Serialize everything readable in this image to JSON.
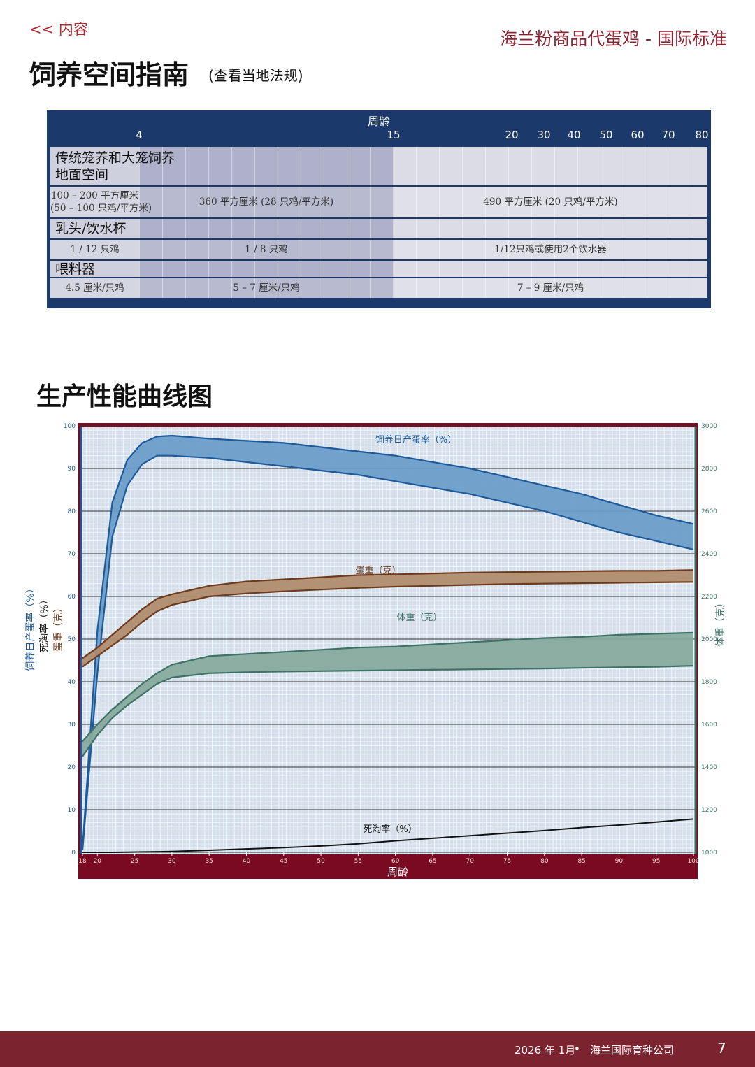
{
  "header": {
    "nav": "<< 内容",
    "brand": "海兰粉商品代蛋鸡 - 国际标准",
    "title": "饲养空间指南",
    "subtitle": "(查看当地法规)"
  },
  "table": {
    "axis_title": "周龄",
    "age_ticks": [
      4,
      15,
      20,
      30,
      40,
      50,
      60,
      70,
      80
    ],
    "sections": [
      {
        "title": [
          "传统笼养和大笼饲养",
          "地面空间"
        ],
        "cells": [
          [
            "100 – 200 平方厘米",
            "(50 – 100 只鸡/平方米)"
          ],
          [
            "360 平方厘米 (28 只鸡/平方米)"
          ],
          [
            "490 平方厘米 (20 只鸡/平方米)"
          ]
        ]
      },
      {
        "title": [
          "乳头/饮水杯"
        ],
        "cells": [
          [
            "1 / 12 只鸡"
          ],
          [
            "1 / 8 只鸡"
          ],
          [
            "1/12只鸡或使用2个饮水器"
          ]
        ]
      },
      {
        "title": [
          "喂料器"
        ],
        "cells": [
          [
            "4.5 厘米/只鸡"
          ],
          [
            "5 – 7 厘米/只鸡"
          ],
          [
            "7 – 9 厘米/只鸡"
          ]
        ]
      }
    ]
  },
  "chart_heading": "生产性能曲线图",
  "chart_data": {
    "type": "band",
    "x_label": "周龄",
    "x": [
      18,
      20,
      22,
      24,
      26,
      28,
      30,
      35,
      40,
      45,
      50,
      55,
      60,
      65,
      70,
      75,
      80,
      85,
      90,
      95,
      100
    ],
    "xlim": [
      18,
      100
    ],
    "xticks": [
      18,
      20,
      25,
      30,
      35,
      40,
      45,
      50,
      55,
      60,
      65,
      70,
      75,
      80,
      85,
      90,
      95,
      100
    ],
    "ylim": [
      0,
      100
    ],
    "yticks": [
      0,
      10,
      20,
      30,
      40,
      50,
      60,
      70,
      80,
      90,
      100
    ],
    "y2lim": [
      1000,
      3000
    ],
    "y2ticks": [
      1000,
      1200,
      1400,
      1600,
      1800,
      2000,
      2200,
      2400,
      2600,
      2800,
      3000
    ],
    "grid": true,
    "series": [
      {
        "name": "饲养日产蛋率（%）",
        "color": "#1d5a9a",
        "fill": "#6d9dca",
        "high": [
          1,
          52,
          82,
          92,
          96,
          97.5,
          97.7,
          97,
          96.5,
          96,
          95,
          94,
          93,
          91.5,
          90,
          88,
          86,
          84,
          81.5,
          79,
          77
        ],
        "low": [
          0.5,
          42,
          74,
          86,
          91,
          93,
          93,
          92.5,
          91.5,
          90.5,
          89.5,
          88.5,
          87,
          85.5,
          84,
          82,
          80,
          77.5,
          75,
          73,
          71
        ]
      },
      {
        "name": "蛋重（克）",
        "color": "#6e3a1c",
        "fill": "#b08c6e",
        "high": [
          45.5,
          48,
          51,
          54,
          57,
          59.5,
          60.5,
          62.5,
          63.5,
          64,
          64.5,
          65,
          65.2,
          65.4,
          65.6,
          65.7,
          65.8,
          65.9,
          66,
          66,
          66.2
        ],
        "low": [
          43.5,
          46,
          48.5,
          51,
          54,
          56.5,
          58,
          60,
          60.7,
          61.2,
          61.6,
          62,
          62.3,
          62.5,
          62.7,
          62.9,
          63,
          63.1,
          63.2,
          63.3,
          63.4
        ]
      },
      {
        "name": "体重（克）",
        "color": "#3d7265",
        "fill": "#88aa9e",
        "axis": "y2",
        "high": [
          1520,
          1600,
          1670,
          1730,
          1790,
          1840,
          1880,
          1920,
          1930,
          1940,
          1950,
          1960,
          1965,
          1975,
          1985,
          1995,
          2005,
          2010,
          2020,
          2025,
          2030
        ],
        "low": [
          1450,
          1550,
          1630,
          1690,
          1740,
          1790,
          1820,
          1840,
          1845,
          1848,
          1850,
          1852,
          1854,
          1856,
          1858,
          1860,
          1862,
          1865,
          1868,
          1870,
          1875
        ]
      },
      {
        "name": "死淘率（%）",
        "color": "#111111",
        "values": [
          0,
          0,
          0,
          0.05,
          0.1,
          0.15,
          0.2,
          0.5,
          0.8,
          1.1,
          1.5,
          2,
          2.7,
          3.3,
          3.9,
          4.5,
          5.1,
          5.8,
          6.4,
          7.1,
          7.8
        ]
      }
    ]
  },
  "footer": {
    "date": "2026 年 1月",
    "separator": "•",
    "company": "海兰国际育种公司",
    "page": "7"
  }
}
